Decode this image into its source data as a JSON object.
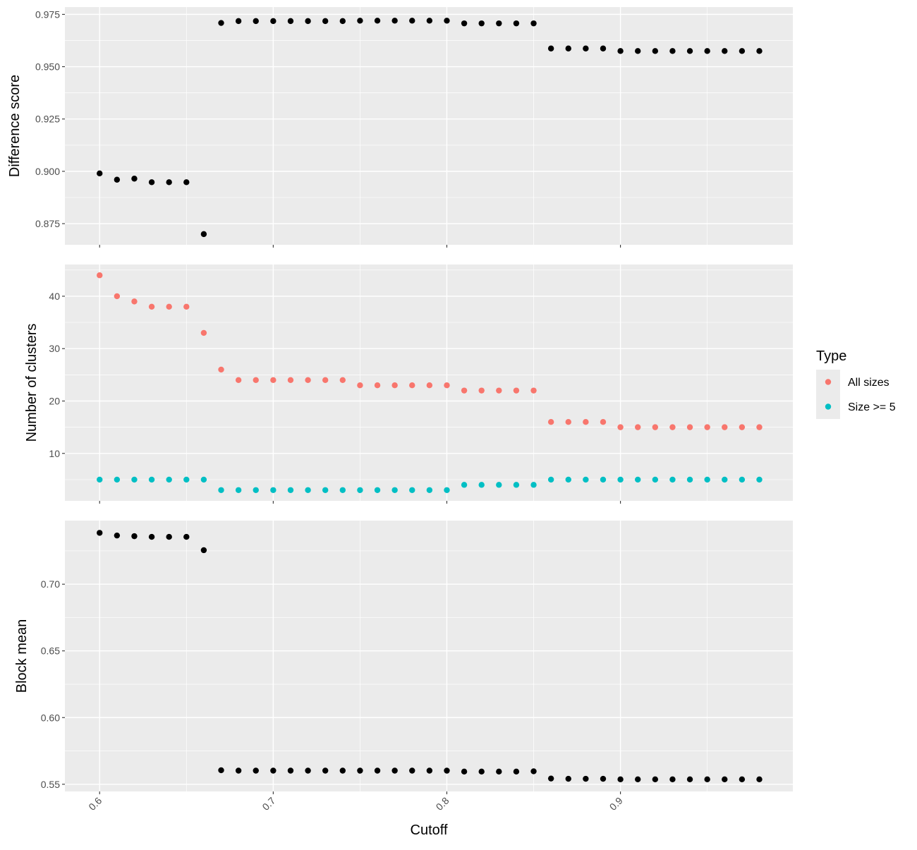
{
  "chart_data": {
    "type": "scatter",
    "xlabel": "Cutoff",
    "x_ticks": [
      0.6,
      0.7,
      0.8,
      0.9
    ],
    "xlim": [
      0.58,
      0.9993
    ],
    "panels": [
      {
        "ylabel": "Difference score",
        "ylim": [
          0.8649,
          0.9785
        ],
        "y_ticks": [
          0.875,
          0.9,
          0.925,
          0.95,
          0.975
        ],
        "y_tick_labels": [
          "0.875",
          "0.900",
          "0.925",
          "0.950",
          "0.975"
        ],
        "series": [
          {
            "color": "#000000",
            "x": [
              0.6,
              0.61,
              0.62,
              0.63,
              0.64,
              0.65,
              0.66,
              0.67,
              0.68,
              0.69,
              0.7,
              0.71,
              0.72,
              0.73,
              0.74,
              0.75,
              0.76,
              0.77,
              0.78,
              0.79,
              0.8,
              0.81,
              0.82,
              0.83,
              0.84,
              0.85,
              0.86,
              0.87,
              0.88,
              0.89,
              0.9,
              0.91,
              0.92,
              0.93,
              0.94,
              0.95,
              0.96,
              0.97,
              0.98
            ],
            "y": [
              0.899,
              0.896,
              0.8965,
              0.8948,
              0.8948,
              0.8948,
              0.87,
              0.9709,
              0.9718,
              0.9718,
              0.9718,
              0.9718,
              0.9718,
              0.9718,
              0.9718,
              0.972,
              0.972,
              0.972,
              0.972,
              0.972,
              0.972,
              0.9707,
              0.9707,
              0.9707,
              0.9707,
              0.9707,
              0.9587,
              0.9587,
              0.9587,
              0.9587,
              0.9575,
              0.9575,
              0.9575,
              0.9575,
              0.9575,
              0.9575,
              0.9575,
              0.9575,
              0.9575
            ]
          }
        ]
      },
      {
        "ylabel": "Number of clusters",
        "ylim": [
          0.95,
          46.05
        ],
        "y_ticks": [
          10,
          20,
          30,
          40
        ],
        "y_tick_labels": [
          "10",
          "20",
          "30",
          "40"
        ],
        "series": [
          {
            "name": "All sizes",
            "color": "#F8766D",
            "x": [
              0.6,
              0.61,
              0.62,
              0.63,
              0.64,
              0.65,
              0.66,
              0.67,
              0.68,
              0.69,
              0.7,
              0.71,
              0.72,
              0.73,
              0.74,
              0.75,
              0.76,
              0.77,
              0.78,
              0.79,
              0.8,
              0.81,
              0.82,
              0.83,
              0.84,
              0.85,
              0.86,
              0.87,
              0.88,
              0.89,
              0.9,
              0.91,
              0.92,
              0.93,
              0.94,
              0.95,
              0.96,
              0.97,
              0.98
            ],
            "y": [
              44,
              40,
              39,
              38,
              38,
              38,
              33,
              26,
              24,
              24,
              24,
              24,
              24,
              24,
              24,
              23,
              23,
              23,
              23,
              23,
              23,
              22,
              22,
              22,
              22,
              22,
              16,
              16,
              16,
              16,
              15,
              15,
              15,
              15,
              15,
              15,
              15,
              15,
              15
            ]
          },
          {
            "name": "Size >= 5",
            "color": "#00BFC4",
            "x": [
              0.6,
              0.61,
              0.62,
              0.63,
              0.64,
              0.65,
              0.66,
              0.67,
              0.68,
              0.69,
              0.7,
              0.71,
              0.72,
              0.73,
              0.74,
              0.75,
              0.76,
              0.77,
              0.78,
              0.79,
              0.8,
              0.81,
              0.82,
              0.83,
              0.84,
              0.85,
              0.86,
              0.87,
              0.88,
              0.89,
              0.9,
              0.91,
              0.92,
              0.93,
              0.94,
              0.95,
              0.96,
              0.97,
              0.98
            ],
            "y": [
              5,
              5,
              5,
              5,
              5,
              5,
              5,
              3,
              3,
              3,
              3,
              3,
              3,
              3,
              3,
              3,
              3,
              3,
              3,
              3,
              3,
              4,
              4,
              4,
              4,
              4,
              5,
              5,
              5,
              5,
              5,
              5,
              5,
              5,
              5,
              5,
              5,
              5,
              5
            ]
          }
        ]
      },
      {
        "ylabel": "Block mean",
        "ylim": [
          0.5446,
          0.7477
        ],
        "y_ticks": [
          0.55,
          0.6,
          0.65,
          0.7
        ],
        "y_tick_labels": [
          "0.55",
          "0.60",
          "0.65",
          "0.70"
        ],
        "series": [
          {
            "color": "#000000",
            "x": [
              0.6,
              0.61,
              0.62,
              0.63,
              0.64,
              0.65,
              0.66,
              0.67,
              0.68,
              0.69,
              0.7,
              0.71,
              0.72,
              0.73,
              0.74,
              0.75,
              0.76,
              0.77,
              0.78,
              0.79,
              0.8,
              0.81,
              0.82,
              0.83,
              0.84,
              0.85,
              0.86,
              0.87,
              0.88,
              0.89,
              0.9,
              0.91,
              0.92,
              0.93,
              0.94,
              0.95,
              0.96,
              0.97,
              0.98
            ],
            "y": [
              0.7385,
              0.7365,
              0.736,
              0.7355,
              0.7355,
              0.7355,
              0.7255,
              0.5605,
              0.5602,
              0.5602,
              0.5602,
              0.5602,
              0.5602,
              0.5602,
              0.5602,
              0.5602,
              0.5602,
              0.5602,
              0.5602,
              0.5602,
              0.5602,
              0.5595,
              0.5595,
              0.5595,
              0.5595,
              0.5597,
              0.5543,
              0.5541,
              0.5541,
              0.5541,
              0.5537,
              0.5537,
              0.5537,
              0.5537,
              0.5537,
              0.5537,
              0.5537,
              0.5537,
              0.5537
            ]
          }
        ]
      }
    ],
    "legend": {
      "title": "Type",
      "position": "right",
      "entries": [
        {
          "label": "All sizes",
          "color": "#F8766D"
        },
        {
          "label": "Size >= 5",
          "color": "#00BFC4"
        }
      ]
    },
    "grid": true,
    "panel_background": "#EBEBEB",
    "grid_color": "#FFFFFF"
  }
}
